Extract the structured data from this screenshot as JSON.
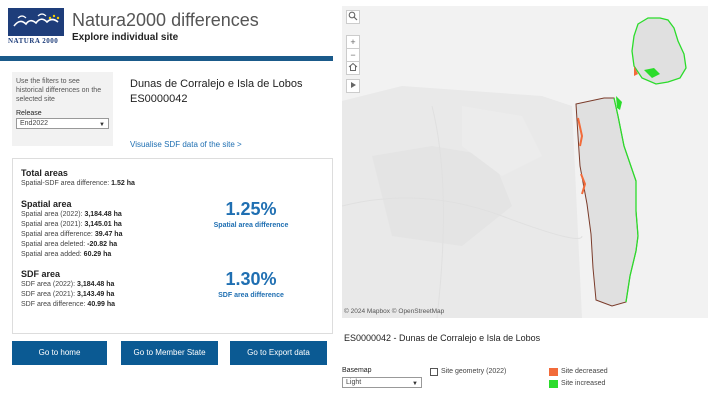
{
  "header": {
    "logo_text": "NATURA 2000",
    "title": "Natura2000 differences",
    "subtitle": "Explore individual site"
  },
  "filters": {
    "help": "Use the filters to see historical differences on the selected site",
    "release_label": "Release",
    "release_value": "End2022"
  },
  "site": {
    "name": "Dunas de Corralejo e Isla de Lobos",
    "code": "ES0000042",
    "sdf_link": "Visualise SDF data of the site >"
  },
  "stats": {
    "total": {
      "title": "Total areas",
      "label": "Spatial-SDF area difference:",
      "value": "1.52 ha"
    },
    "spatial": {
      "title": "Spatial area",
      "rows": [
        {
          "label": "Spatial area (2022):",
          "value": "3,184.48 ha"
        },
        {
          "label": "Spatial area (2021):",
          "value": "3,145.01 ha"
        },
        {
          "label": "Spatial area difference:",
          "value": "39.47 ha"
        },
        {
          "label": "Spatial area deleted:",
          "value": "-20.82 ha"
        },
        {
          "label": "Spatial area added:",
          "value": "60.29 ha"
        }
      ],
      "pct": "1.25%",
      "pct_label": "Spatial area difference"
    },
    "sdf": {
      "title": "SDF area",
      "rows": [
        {
          "label": "SDF area (2022):",
          "value": "3,184.48 ha"
        },
        {
          "label": "SDF area (2021):",
          "value": "3,143.49 ha"
        },
        {
          "label": "SDF area difference:",
          "value": "40.99 ha"
        }
      ],
      "pct": "1.30%",
      "pct_label": "SDF area difference"
    }
  },
  "buttons": {
    "home": "Go to home",
    "member_state": "Go to Member State",
    "export": "Go to Export data"
  },
  "map": {
    "attribution": "© 2024 Mapbox  © OpenStreetMap",
    "caption": "ES0000042 - Dunas de Corralejo e Isla de Lobos",
    "controls": {
      "search": "search-icon",
      "zoom_in": "+",
      "zoom_out": "−",
      "home": "home-icon",
      "play": "play-icon"
    }
  },
  "legend": {
    "basemap_label": "Basemap",
    "basemap_value": "Light",
    "geometry_label": "Site geometry (2022)",
    "decreased_label": "Site decreased",
    "increased_label": "Site increased",
    "decreased_color": "#f26b3a",
    "increased_color": "#2bdc2b",
    "accent_color": "#0b5a93"
  }
}
